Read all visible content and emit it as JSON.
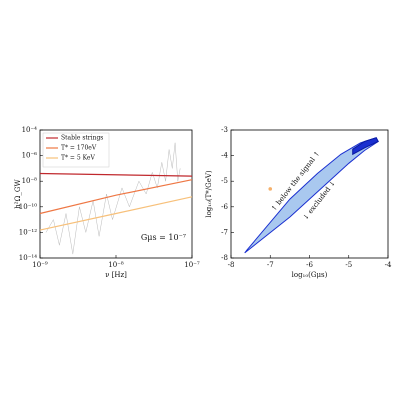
{
  "chart_data": [
    {
      "type": "line",
      "log_x": true,
      "log_y": true,
      "xlabel": "ν [Hz]",
      "ylabel": "h²Ω_GW",
      "annotation": "Gμs = 10⁻⁷",
      "xlim": [
        1e-09,
        1e-07
      ],
      "xticks": [
        {
          "value": 1e-09,
          "label": "10⁻⁹"
        },
        {
          "value": 1e-08,
          "label": "10⁻⁸"
        },
        {
          "value": 1e-07,
          "label": "10⁻⁷"
        }
      ],
      "ylim": [
        1e-14,
        0.0001
      ],
      "yticks": [
        {
          "value": 1e-14,
          "label": "10⁻¹⁴"
        },
        {
          "value": 1e-12,
          "label": "10⁻¹²"
        },
        {
          "value": 1e-10,
          "label": "10⁻¹⁰"
        },
        {
          "value": 1e-08,
          "label": "10⁻⁸"
        },
        {
          "value": 1e-06,
          "label": "10⁻⁶"
        },
        {
          "value": 0.0001,
          "label": "10⁻⁴"
        }
      ],
      "series": [
        {
          "color": "#bbbbbb",
          "x": [
            1.2e-09,
            1.5e-09,
            1.8e-09,
            2.2e-09,
            2.7e-09,
            3.3e-09,
            4e-09,
            5e-09,
            6e-09,
            7.5e-09,
            9e-09,
            1.2e-08,
            1.5e-08,
            2e-08,
            2.5e-08,
            3e-08,
            3.5e-08,
            4e-08,
            4.5e-08,
            5e-08,
            5.5e-08,
            6e-08,
            6.5e-08,
            7e-08
          ],
          "values": [
            1e-12,
            1e-11,
            1e-13,
            3e-11,
            2e-14,
            1e-10,
            1e-12,
            3e-10,
            5e-13,
            1e-09,
            1e-11,
            3e-09,
            1e-10,
            1e-08,
            1e-09,
            5e-08,
            3e-09,
            3e-07,
            1e-08,
            3e-06,
            1e-07,
            1e-05,
            1e-08,
            1e-07
          ]
        },
        {
          "name": "Stable strings",
          "color": "#c0282d",
          "x": [
            1e-09,
            1e-07
          ],
          "values": [
            4e-08,
            2.5e-08
          ]
        },
        {
          "name": "T* = 170eV",
          "color": "#ee7744",
          "x": [
            1e-09,
            1e-08,
            1e-07
          ],
          "values": [
            3e-11,
            8e-10,
            1.3e-08
          ]
        },
        {
          "name": "T* = 5 KeV",
          "color": "#f7c07a",
          "x": [
            1e-09,
            1e-08,
            1e-07
          ],
          "values": [
            1.5e-12,
            3e-11,
            6e-10
          ]
        }
      ]
    },
    {
      "type": "contour",
      "xlabel": "log₁₀(Gμs)",
      "ylabel": "log₁₀(T*/GeV)",
      "annotations": [
        "↑ below the signal ↑",
        "↓ excluded ↓"
      ],
      "xlim": [
        -8,
        -4
      ],
      "xticks": [
        -8,
        -7,
        -6,
        -5,
        -4
      ],
      "ylim": [
        -8,
        -3
      ],
      "yticks": [
        -8,
        -7,
        -6,
        -5,
        -4,
        -3
      ],
      "series": [
        {
          "color": "#a9c8ef",
          "edge_color": "#1a2fd0",
          "x": [
            -7.65,
            -6.5,
            -6,
            -5.5,
            -5,
            -4.6,
            -4.25,
            -4.3,
            -4.7,
            -5.2,
            -5.8,
            -6.5,
            -7.6
          ],
          "values": [
            -7.8,
            -6.4,
            -5.7,
            -5,
            -4.3,
            -3.8,
            -3.45,
            -3.3,
            -3.5,
            -3.95,
            -4.7,
            -5.7,
            -7.7
          ]
        },
        {
          "color": "#1a2fd0",
          "edge_color": "#0a1aa0",
          "x": [
            -4.9,
            -4.6,
            -4.25,
            -4.3,
            -4.6,
            -4.9
          ],
          "values": [
            -3.95,
            -3.7,
            -3.45,
            -3.3,
            -3.45,
            -3.75
          ]
        }
      ],
      "markers": [
        {
          "x": -7,
          "y": -5.3,
          "color": "#f5b06a"
        }
      ]
    }
  ]
}
